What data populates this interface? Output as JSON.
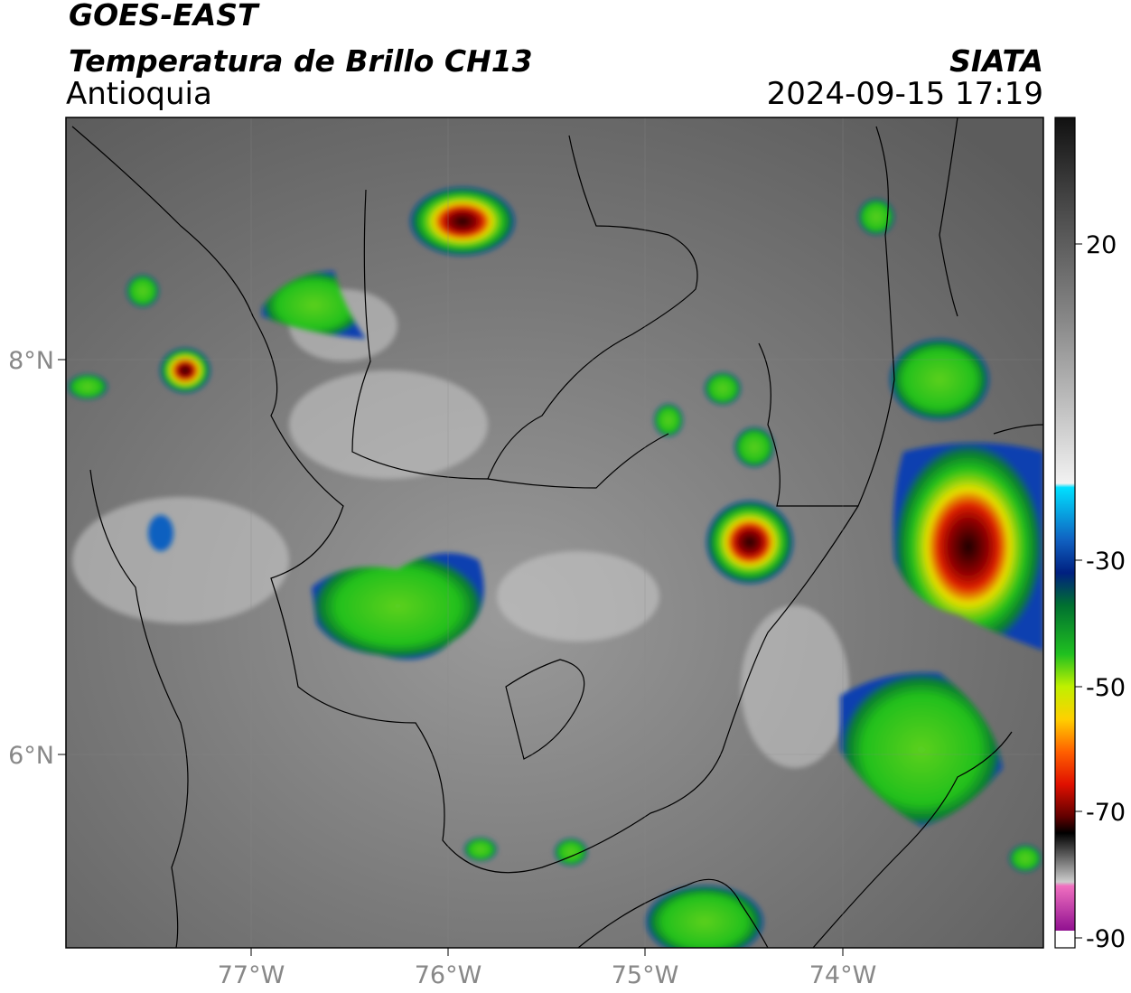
{
  "header": {
    "satellite": "GOES-EAST",
    "product": "Temperatura de Brillo CH13",
    "region": "Antioquia",
    "source": "SIATA",
    "datetime": "2024-09-15 17:19"
  },
  "map": {
    "lat_labels": [
      "8°N",
      "6°N"
    ],
    "lon_labels": [
      "77°W",
      "76°W",
      "75°W",
      "74°W"
    ]
  },
  "colorbar": {
    "tick_labels": [
      "20",
      "-30",
      "-50",
      "-70",
      "-90"
    ]
  }
}
